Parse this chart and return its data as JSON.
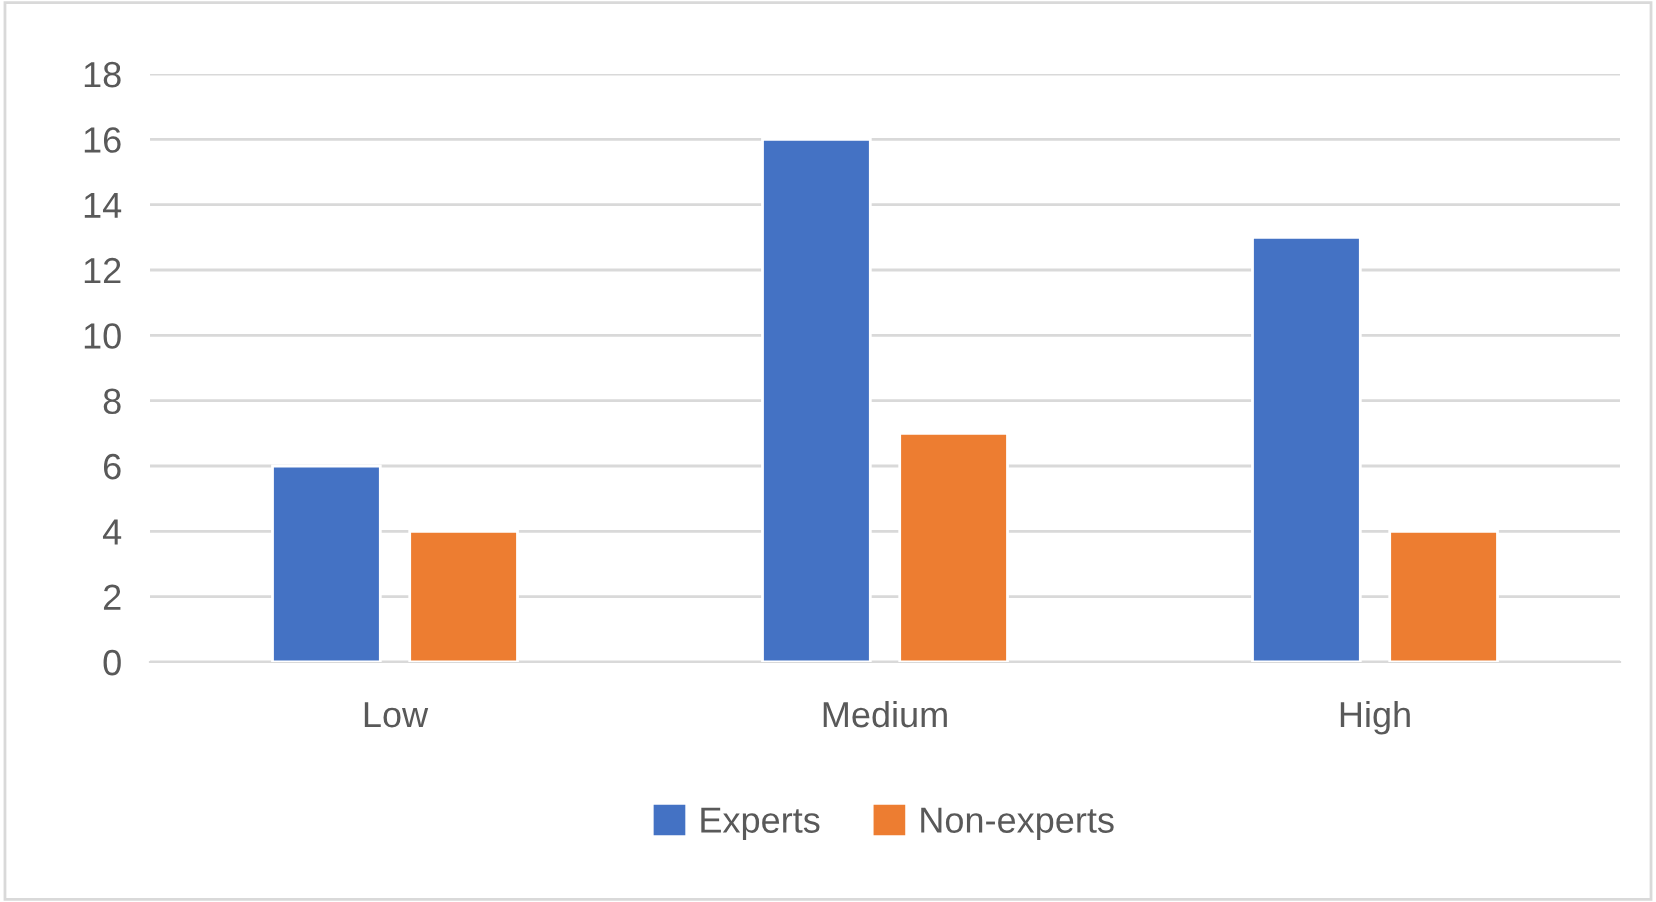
{
  "chart_data": {
    "type": "bar",
    "categories": [
      "Low",
      "Medium",
      "High"
    ],
    "series": [
      {
        "name": "Experts",
        "color": "#4472c4",
        "values": [
          6,
          16,
          13
        ]
      },
      {
        "name": "Non-experts",
        "color": "#ed7d31",
        "values": [
          4,
          7,
          4
        ]
      }
    ],
    "ylim": [
      0,
      18
    ],
    "yticks": [
      0,
      2,
      4,
      6,
      8,
      10,
      12,
      14,
      16,
      18
    ],
    "grid": "y",
    "legend": "bottom"
  }
}
